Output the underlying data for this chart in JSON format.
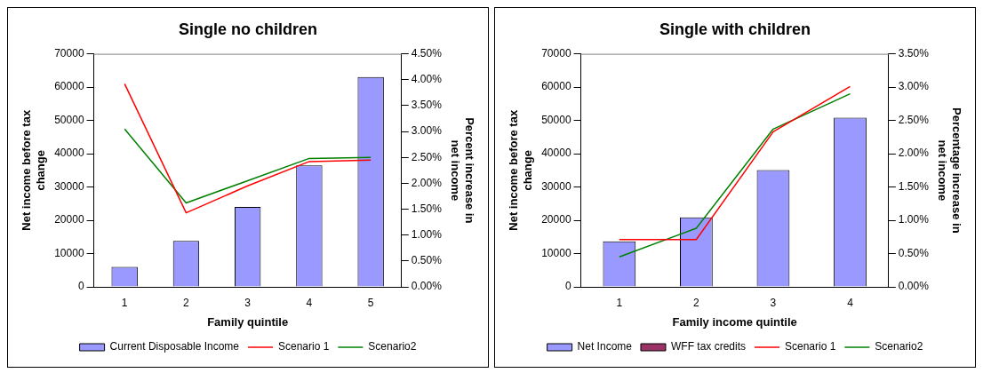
{
  "chart_data": [
    {
      "type": "bar",
      "title": "Single no children",
      "xlabel": "Family quintile",
      "ylabel": "Net income before tax change",
      "y2label": "Percent increase in net income",
      "categories": [
        "1",
        "2",
        "3",
        "4",
        "5"
      ],
      "series": [
        {
          "name": "Current Disposable Income",
          "color": "#9999ff",
          "values": [
            6000,
            13800,
            24000,
            36500,
            63000
          ]
        },
        {
          "name": "Scenario 1",
          "type": "line",
          "axis": "y2",
          "color": "#ff0000",
          "values": [
            3.92,
            1.43,
            1.95,
            2.42,
            2.45
          ]
        },
        {
          "name": "Scenario2",
          "type": "line",
          "axis": "y2",
          "color": "#008000",
          "values": [
            3.05,
            1.62,
            2.05,
            2.48,
            2.5
          ]
        }
      ],
      "ylim": [
        0,
        70000
      ],
      "yticks": [
        0,
        10000,
        20000,
        30000,
        40000,
        50000,
        60000,
        70000
      ],
      "y2lim": [
        0,
        4.5
      ],
      "y2ticks": [
        {
          "value": 0,
          "label": "0.00%"
        },
        {
          "value": 0.5,
          "label": "0.50%"
        },
        {
          "value": 1,
          "label": "1.00%"
        },
        {
          "value": 1.5,
          "label": "1.50%"
        },
        {
          "value": 2,
          "label": "2.00%"
        },
        {
          "value": 2.5,
          "label": "2.50%"
        },
        {
          "value": 3,
          "label": "3.00%"
        },
        {
          "value": 3.5,
          "label": "3.50%"
        },
        {
          "value": 4,
          "label": "4.00%"
        },
        {
          "value": 4.5,
          "label": "4.50%"
        }
      ],
      "grid": false,
      "legend": "bottom",
      "marker": "none"
    },
    {
      "type": "bar",
      "title": "Single with children",
      "xlabel": "Family income quintile",
      "ylabel": "Net income before tax change",
      "y2label": "Percentage increase in net income",
      "categories": [
        "1",
        "2",
        "3",
        "4"
      ],
      "series": [
        {
          "name": "Net Income",
          "color": "#9999ff",
          "values": [
            13700,
            20900,
            35100,
            50800
          ]
        },
        {
          "name": "WFF tax credits",
          "color": "#993366",
          "values": [
            null,
            null,
            null,
            null
          ]
        },
        {
          "name": "Scenario 1",
          "type": "line",
          "axis": "y2",
          "color": "#ff0000",
          "values": [
            0.71,
            0.71,
            2.33,
            3.01
          ]
        },
        {
          "name": "Scenario2",
          "type": "line",
          "axis": "y2",
          "color": "#008000",
          "values": [
            0.45,
            0.88,
            2.37,
            2.9
          ]
        }
      ],
      "ylim": [
        0,
        70000
      ],
      "yticks": [
        0,
        10000,
        20000,
        30000,
        40000,
        50000,
        60000,
        70000
      ],
      "y2lim": [
        0,
        3.5
      ],
      "y2ticks": [
        {
          "value": 0,
          "label": "0.00%"
        },
        {
          "value": 0.5,
          "label": "0.50%"
        },
        {
          "value": 1,
          "label": "1.00%"
        },
        {
          "value": 1.5,
          "label": "1.50%"
        },
        {
          "value": 2,
          "label": "2.00%"
        },
        {
          "value": 2.5,
          "label": "2.50%"
        },
        {
          "value": 3,
          "label": "3.00%"
        },
        {
          "value": 3.5,
          "label": "3.50%"
        }
      ],
      "grid": false,
      "legend": "bottom",
      "marker": "none"
    }
  ]
}
